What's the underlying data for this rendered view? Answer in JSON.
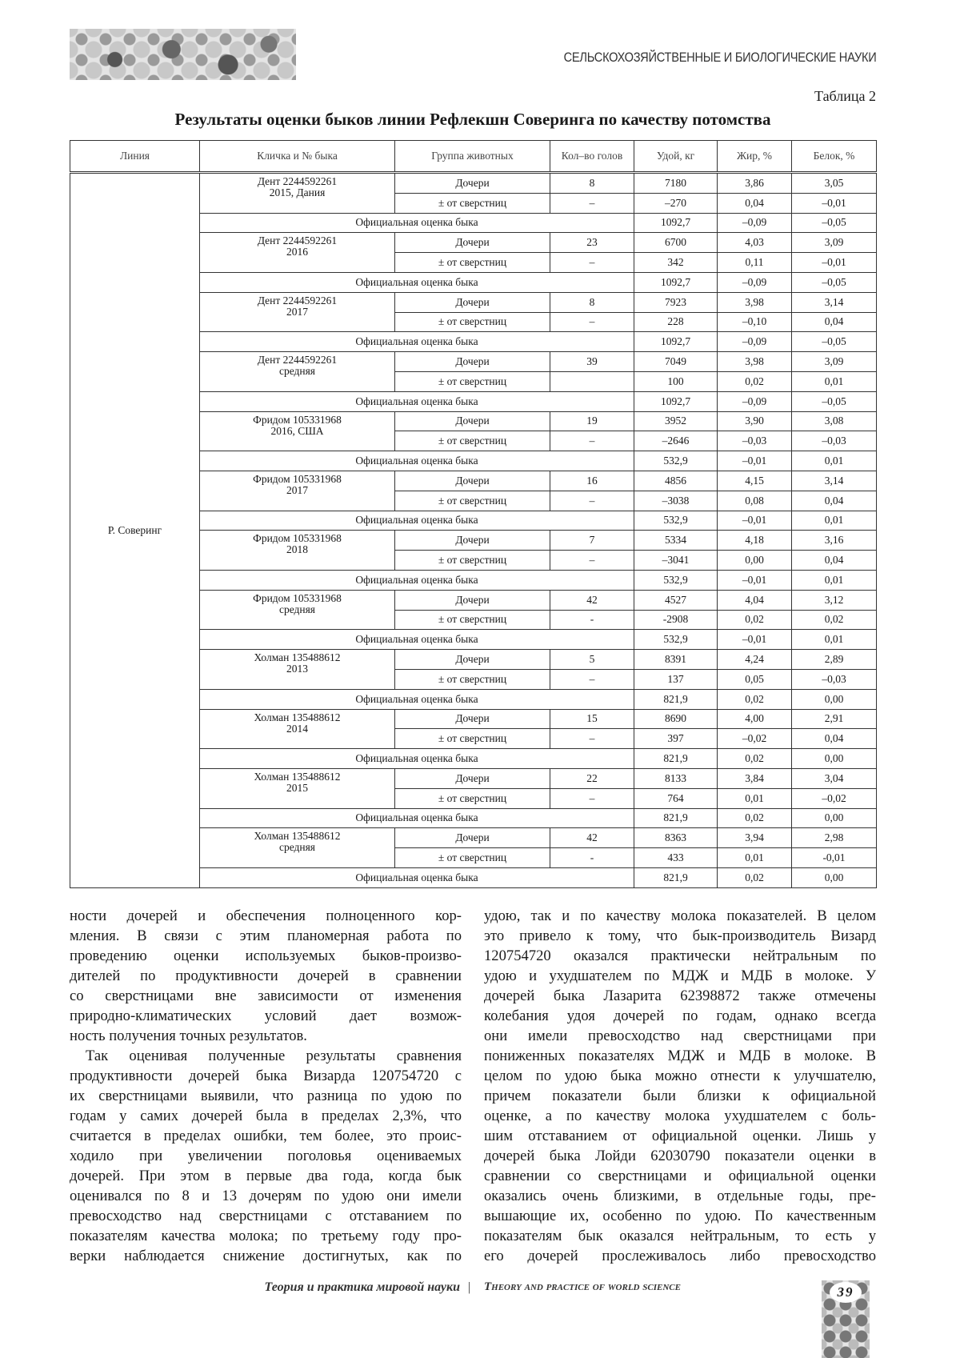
{
  "header": {
    "section": "СЕЛЬСКОХОЗЯЙСТВЕННЫЕ И БИОЛОГИЧЕСКИЕ НАУКИ"
  },
  "table": {
    "label": "Таблица 2",
    "title": "Результаты оценки быков линии Рефлекшн Соверинга по качеству потомства",
    "columns": [
      "Линия",
      "Кличка и № быка",
      "Группа животных",
      "Кол–во голов",
      "Удой, кг",
      "Жир, %",
      "Белок, %"
    ],
    "line": "Р. Соверинг",
    "official_label": "Официальная оценка быка",
    "groups_label": {
      "daughters": "Дочери",
      "diff": "± от сверстниц"
    },
    "bulls": [
      {
        "name": "Дент 2244592261",
        "sub": "2015, Дания",
        "daughters": [
          "8",
          "7180",
          "3,86",
          "3,05"
        ],
        "diff": [
          "–",
          "–270",
          "0,04",
          "–0,01"
        ],
        "official": [
          "1092,7",
          "–0,09",
          "–0,05"
        ]
      },
      {
        "name": "Дент 2244592261",
        "sub": "2016",
        "daughters": [
          "23",
          "6700",
          "4,03",
          "3,09"
        ],
        "diff": [
          "–",
          "342",
          "0,11",
          "–0,01"
        ],
        "official": [
          "1092,7",
          "–0,09",
          "–0,05"
        ]
      },
      {
        "name": "Дент 2244592261",
        "sub": "2017",
        "daughters": [
          "8",
          "7923",
          "3,98",
          "3,14"
        ],
        "diff": [
          "–",
          "228",
          "–0,10",
          "0,04"
        ],
        "official": [
          "1092,7",
          "–0,09",
          "–0,05"
        ]
      },
      {
        "name": "Дент 2244592261",
        "sub": "средняя",
        "daughters": [
          "39",
          "7049",
          "3,98",
          "3,09"
        ],
        "diff": [
          "",
          "100",
          "0,02",
          "0,01"
        ],
        "official": [
          "1092,7",
          "–0,09",
          "–0,05"
        ]
      },
      {
        "name": "Фридом 105331968",
        "sub": "2016, США",
        "daughters": [
          "19",
          "3952",
          "3,90",
          "3,08"
        ],
        "diff": [
          "–",
          "–2646",
          "–0,03",
          "–0,03"
        ],
        "official": [
          "532,9",
          "–0,01",
          "0,01"
        ]
      },
      {
        "name": "Фридом 105331968",
        "sub": "2017",
        "daughters": [
          "16",
          "4856",
          "4,15",
          "3,14"
        ],
        "diff": [
          "–",
          "–3038",
          "0,08",
          "0,04"
        ],
        "official": [
          "532,9",
          "–0,01",
          "0,01"
        ]
      },
      {
        "name": "Фридом 105331968",
        "sub": "2018",
        "daughters": [
          "7",
          "5334",
          "4,18",
          "3,16"
        ],
        "diff": [
          "–",
          "–3041",
          "0,00",
          "0,04"
        ],
        "official": [
          "532,9",
          "–0,01",
          "0,01"
        ]
      },
      {
        "name": "Фридом 105331968",
        "sub": "средняя",
        "daughters": [
          "42",
          "4527",
          "4,04",
          "3,12"
        ],
        "diff": [
          "-",
          "-2908",
          "0,02",
          "0,02"
        ],
        "official": [
          "532,9",
          "–0,01",
          "0,01"
        ]
      },
      {
        "name": "Холман 135488612",
        "sub": "2013",
        "daughters": [
          "5",
          "8391",
          "4,24",
          "2,89"
        ],
        "diff": [
          "–",
          "137",
          "0,05",
          "–0,03"
        ],
        "official": [
          "821,9",
          "0,02",
          "0,00"
        ]
      },
      {
        "name": "Холман 135488612",
        "sub": "2014",
        "daughters": [
          "15",
          "8690",
          "4,00",
          "2,91"
        ],
        "diff": [
          "–",
          "397",
          "–0,02",
          "0,04"
        ],
        "official": [
          "821,9",
          "0,02",
          "0,00"
        ]
      },
      {
        "name": "Холман 135488612",
        "sub": "2015",
        "daughters": [
          "22",
          "8133",
          "3,84",
          "3,04"
        ],
        "diff": [
          "–",
          "764",
          "0,01",
          "–0,02"
        ],
        "official": [
          "821,9",
          "0,02",
          "0,00"
        ]
      },
      {
        "name": "Холман 135488612",
        "sub": "средняя",
        "daughters": [
          "42",
          "8363",
          "3,94",
          "2,98"
        ],
        "diff": [
          "-",
          "433",
          "0,01",
          "-0,01"
        ],
        "official": [
          "821,9",
          "0,02",
          "0,00"
        ]
      }
    ]
  },
  "body": {
    "left": [
      "ности дочерей и обеспечения полноценного кор-",
      "мления. В связи с этим планомерная работа по",
      "проведению оценки используемых быков-произво-",
      "дителей по продуктивности дочерей в сравнении",
      "со сверстницами вне зависимости от изменения",
      "природно-климатических условий дает возмож-",
      "ность получения точных результатов.",
      "Так оценивая полученные результаты сравнения",
      "продуктивности дочерей быка Визарда 120754720 с",
      "их сверстницами выявили, что разница по удою по",
      "годам у самих дочерей была в пределах 2,3%, что",
      "считается в пределах ошибки, тем более, это проис-",
      "ходило при увеличении поголовья оцениваемых",
      "дочерей. При этом в первые два года, когда бык",
      "оценивался по 8 и 13 дочерям по удою они имели",
      "превосходство над сверстницами с отставанием по",
      "показателям качества молока; по третьему году про-",
      "верки наблюдается снижение достигнутых, как по"
    ],
    "right": [
      "удою, так и по качеству молока показателей. В целом",
      "это привело к тому, что бык-производитель Визард",
      "120754720 оказался практически нейтральным по",
      "удою и ухудшателем по МДЖ и МДБ в молоке. У",
      "дочерей быка Лазарита 62398872 также отмечены",
      "колебания удоя дочерей по годам, однако всегда",
      "они имели превосходство над сверстницами при",
      "пониженных показателях МДЖ и МДБ в молоке. В",
      "целом по удою быка можно отнести к улучшателю,",
      "причем показатели были близки к официальной",
      "оценке, а по качеству молока ухудшателем с боль-",
      "шим отставанием от официальной оценки. Лишь у",
      "дочерей быка Лойди 62030790 показатели оценки в",
      "сравнении со сверстницами и официальной оценки",
      "оказались очень близкими, в отдельные годы, пре-",
      "вышающие их, особенно по удою. По качественным",
      "показателям бык оказался нейтральным, то есть у",
      "его дочерей прослеживалось либо превосходство"
    ]
  },
  "footer": {
    "journal_ru": "Теория и практика мировой науки",
    "separator": "|",
    "journal_en": "Theory and practice of world science",
    "page": "39"
  }
}
